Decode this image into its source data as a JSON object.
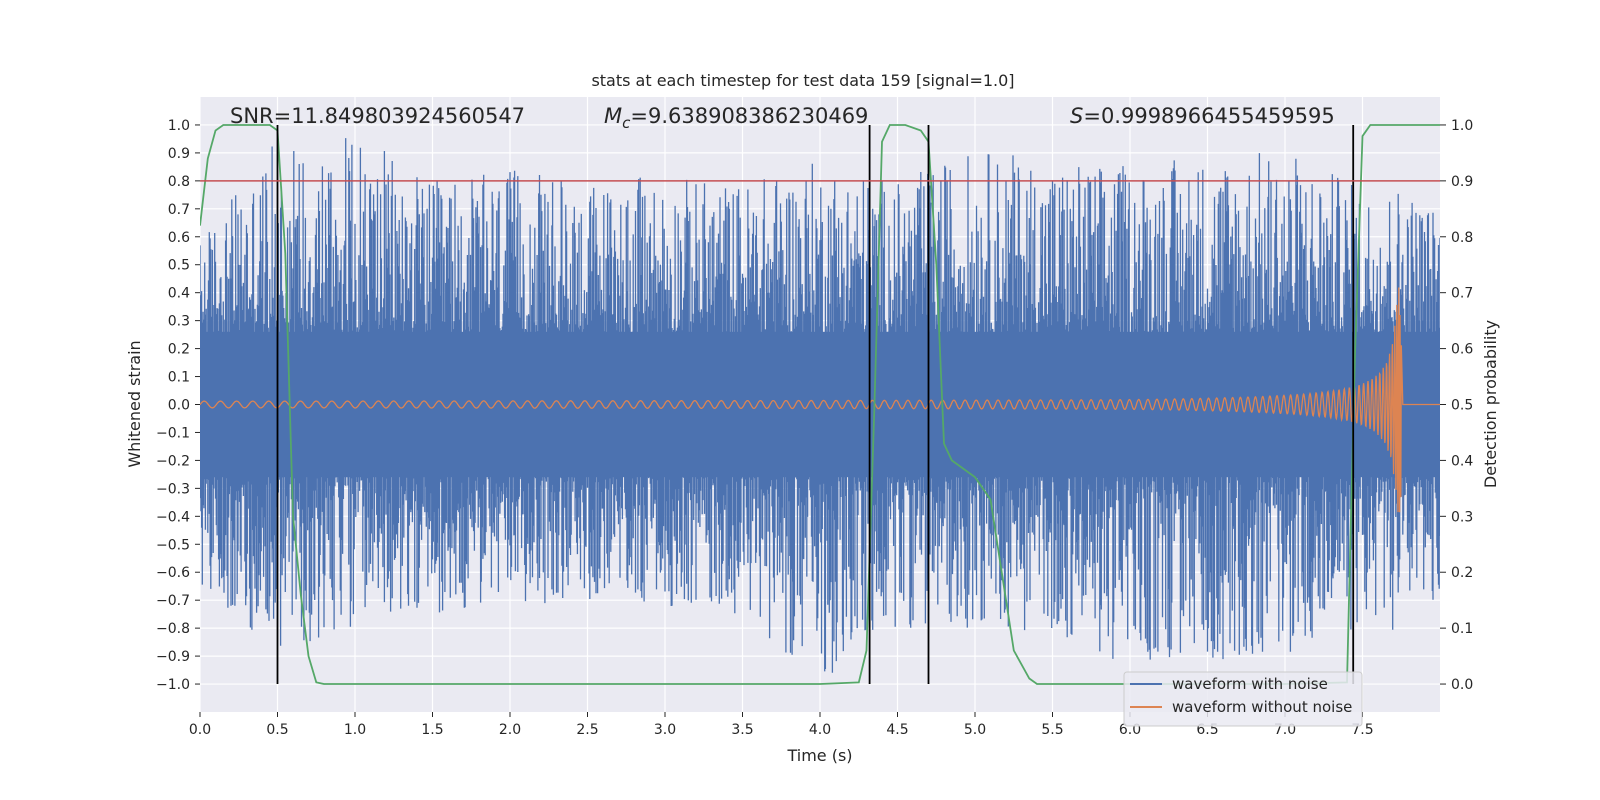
{
  "chart_data": {
    "type": "line",
    "title": "stats at each timestep for test data 159 [signal=1.0]",
    "xlabel": "Time (s)",
    "ylabel": "Whitened strain",
    "y2label": "Detection probability",
    "xlim": [
      0.0,
      8.0
    ],
    "ylim": [
      -1.1,
      1.1
    ],
    "y2lim": [
      -0.05,
      1.05
    ],
    "xticks": [
      "0.0",
      "0.5",
      "1.0",
      "1.5",
      "2.0",
      "2.5",
      "3.0",
      "3.5",
      "4.0",
      "4.5",
      "5.0",
      "5.5",
      "6.0",
      "6.5",
      "7.0",
      "7.5"
    ],
    "yticks": [
      "−1.0",
      "−0.9",
      "−0.8",
      "−0.7",
      "−0.6",
      "−0.5",
      "−0.4",
      "−0.3",
      "−0.2",
      "−0.1",
      "0.0",
      "0.1",
      "0.2",
      "0.3",
      "0.4",
      "0.5",
      "0.6",
      "0.7",
      "0.8",
      "0.9",
      "1.0"
    ],
    "y2ticks": [
      "0.0",
      "0.1",
      "0.2",
      "0.3",
      "0.4",
      "0.5",
      "0.6",
      "0.7",
      "0.8",
      "0.9",
      "1.0"
    ],
    "grid": true,
    "legend_position": "lower-right",
    "annotations": {
      "snr": "SNR=11.849803924560547",
      "mc_symbol": "M",
      "mc_sub": "c",
      "mc_value": "=9.638908386230469",
      "s_symbol": "S",
      "s_value": "=0.9998966455459595"
    },
    "threshold": {
      "y2": 0.9,
      "color": "#c44e52"
    },
    "vertical_lines_x": [
      0.5,
      4.32,
      4.7,
      7.44
    ],
    "noise_envelope": {
      "note_free": false,
      "time_s": [
        0.0,
        0.5,
        1.0,
        1.5,
        2.0,
        2.5,
        3.0,
        3.5,
        4.0,
        4.5,
        5.0,
        5.5,
        6.0,
        6.5,
        7.0,
        7.5,
        7.75,
        8.0
      ],
      "upper": [
        0.6,
        0.95,
        0.98,
        0.8,
        0.84,
        0.8,
        0.82,
        0.8,
        0.88,
        0.8,
        0.92,
        0.88,
        0.86,
        0.9,
        0.92,
        0.78,
        0.8,
        0.7
      ],
      "lower": [
        -0.65,
        -0.9,
        -0.8,
        -0.75,
        -0.72,
        -0.7,
        -0.72,
        -0.75,
        -1.0,
        -0.8,
        -0.8,
        -0.82,
        -0.95,
        -0.92,
        -0.9,
        -0.8,
        -0.82,
        -0.7
      ]
    },
    "series": [
      {
        "name": "waveform with noise",
        "color": "#4c72b0"
      },
      {
        "name": "waveform without noise",
        "color": "#dd8452",
        "amplitude_start": 0.012,
        "chirp_peak_time": 7.75,
        "chirp_peak_amplitude": 0.44
      },
      {
        "color": "#55a868",
        "x": [
          0.0,
          0.05,
          0.1,
          0.15,
          0.3,
          0.45,
          0.5,
          0.55,
          0.6,
          0.65,
          0.7,
          0.75,
          0.8,
          1.0,
          2.0,
          3.0,
          4.0,
          4.25,
          4.3,
          4.35,
          4.4,
          4.45,
          4.55,
          4.65,
          4.7,
          4.75,
          4.8,
          4.85,
          5.0,
          5.1,
          5.25,
          5.35,
          5.4,
          6.0,
          7.0,
          7.4,
          7.45,
          7.5,
          7.55,
          7.6,
          8.0
        ],
        "y": [
          0.82,
          0.94,
          0.99,
          1.0,
          1.0,
          1.0,
          0.99,
          0.77,
          0.3,
          0.16,
          0.05,
          0.003,
          0.0,
          0.0,
          0.0,
          0.0,
          0.0,
          0.003,
          0.06,
          0.49,
          0.97,
          1.0,
          1.0,
          0.99,
          0.97,
          0.75,
          0.43,
          0.4,
          0.37,
          0.33,
          0.06,
          0.01,
          0.0,
          0.0,
          0.0,
          0.003,
          0.58,
          0.98,
          1.0,
          1.0,
          1.0
        ]
      }
    ]
  }
}
